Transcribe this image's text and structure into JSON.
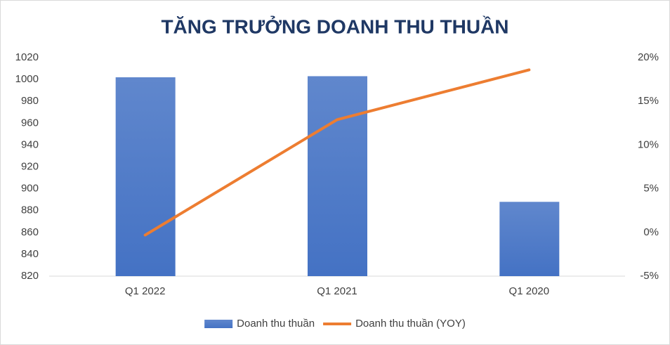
{
  "chart_data": {
    "type": "bar",
    "title": "TĂNG TRƯỞNG DOANH THU THUẦN",
    "categories": [
      "Q1 2022",
      "Q1 2021",
      "Q1 2020"
    ],
    "series": [
      {
        "name": "Doanh thu thuần",
        "type": "bar",
        "color": "#4472c4",
        "values": [
          1002,
          1003,
          888
        ]
      },
      {
        "name": "Doanh thu thuần (YOY)",
        "type": "line",
        "color": "#ed7d31",
        "axis": "y2",
        "values": [
          -0.3,
          12.9,
          18.6
        ]
      }
    ],
    "ylim": [
      820,
      1020
    ],
    "yticks": [
      820,
      840,
      860,
      880,
      900,
      920,
      940,
      960,
      980,
      1000,
      1020
    ],
    "y2lim": [
      -5,
      20
    ],
    "y2ticks": [
      {
        "value": -5,
        "label": "-5%"
      },
      {
        "value": 0,
        "label": "0%"
      },
      {
        "value": 5,
        "label": "5%"
      },
      {
        "value": 10,
        "label": "10%"
      },
      {
        "value": 15,
        "label": "15%"
      },
      {
        "value": 20,
        "label": "20%"
      }
    ],
    "legend": "bottom"
  }
}
